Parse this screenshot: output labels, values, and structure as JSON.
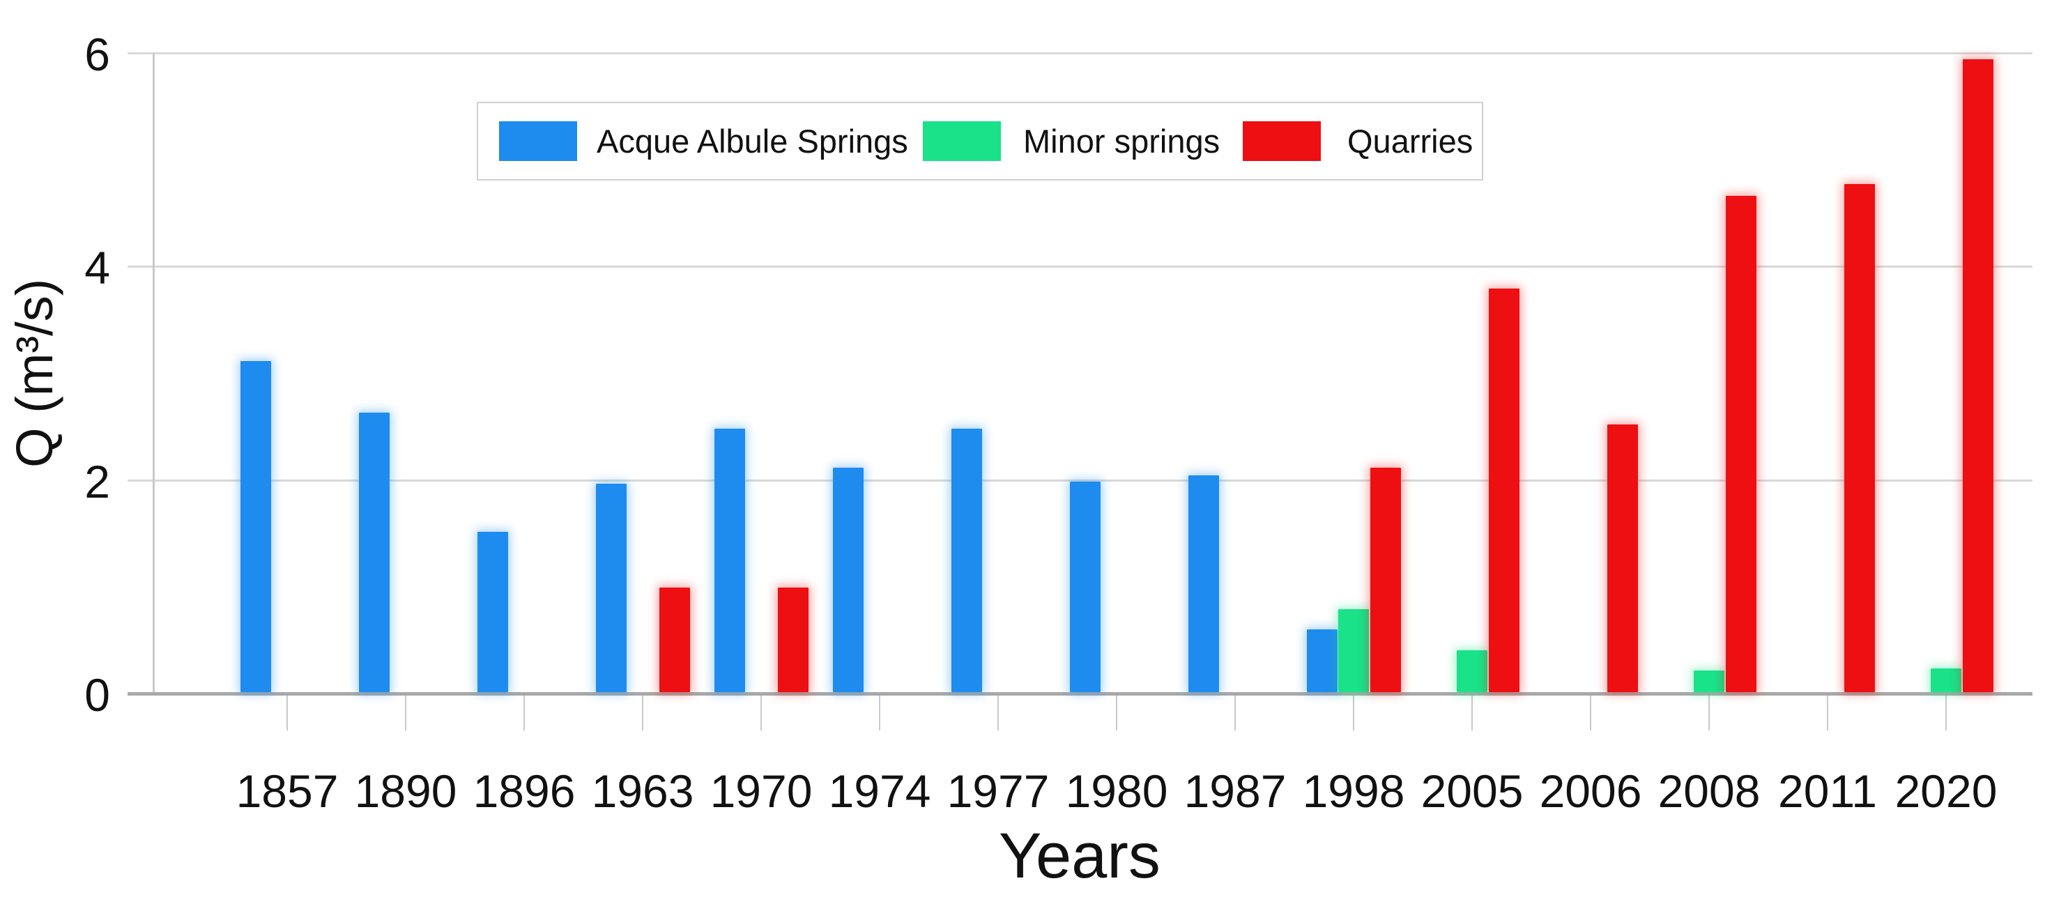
{
  "chart_data": {
    "type": "bar",
    "title": "",
    "xlabel": "Years",
    "ylabel": "Q (m³/s)",
    "ylim": [
      0,
      6
    ],
    "yticks": [
      0,
      2,
      4,
      6
    ],
    "grid": true,
    "legend_position": "top-center",
    "categories": [
      "1857",
      "1890",
      "1896",
      "1963",
      "1970",
      "1974",
      "1977",
      "1980",
      "1987",
      "1998",
      "2005",
      "2006",
      "2008",
      "2011",
      "2020"
    ],
    "series": [
      {
        "name": "Acque Albule Springs",
        "color": "#1e8bef",
        "values": [
          3.1,
          2.62,
          1.5,
          1.95,
          2.47,
          2.1,
          2.47,
          1.97,
          2.03,
          0.59,
          null,
          null,
          null,
          null,
          null
        ]
      },
      {
        "name": "Minor springs",
        "color": "#19e289",
        "values": [
          null,
          null,
          null,
          null,
          null,
          null,
          null,
          null,
          null,
          0.78,
          0.39,
          null,
          0.2,
          null,
          0.22
        ]
      },
      {
        "name": "Quarries",
        "color": "#ed0f12",
        "values": [
          null,
          null,
          null,
          0.98,
          0.98,
          null,
          null,
          null,
          null,
          2.1,
          3.78,
          2.51,
          4.65,
          4.76,
          5.93
        ]
      }
    ]
  }
}
